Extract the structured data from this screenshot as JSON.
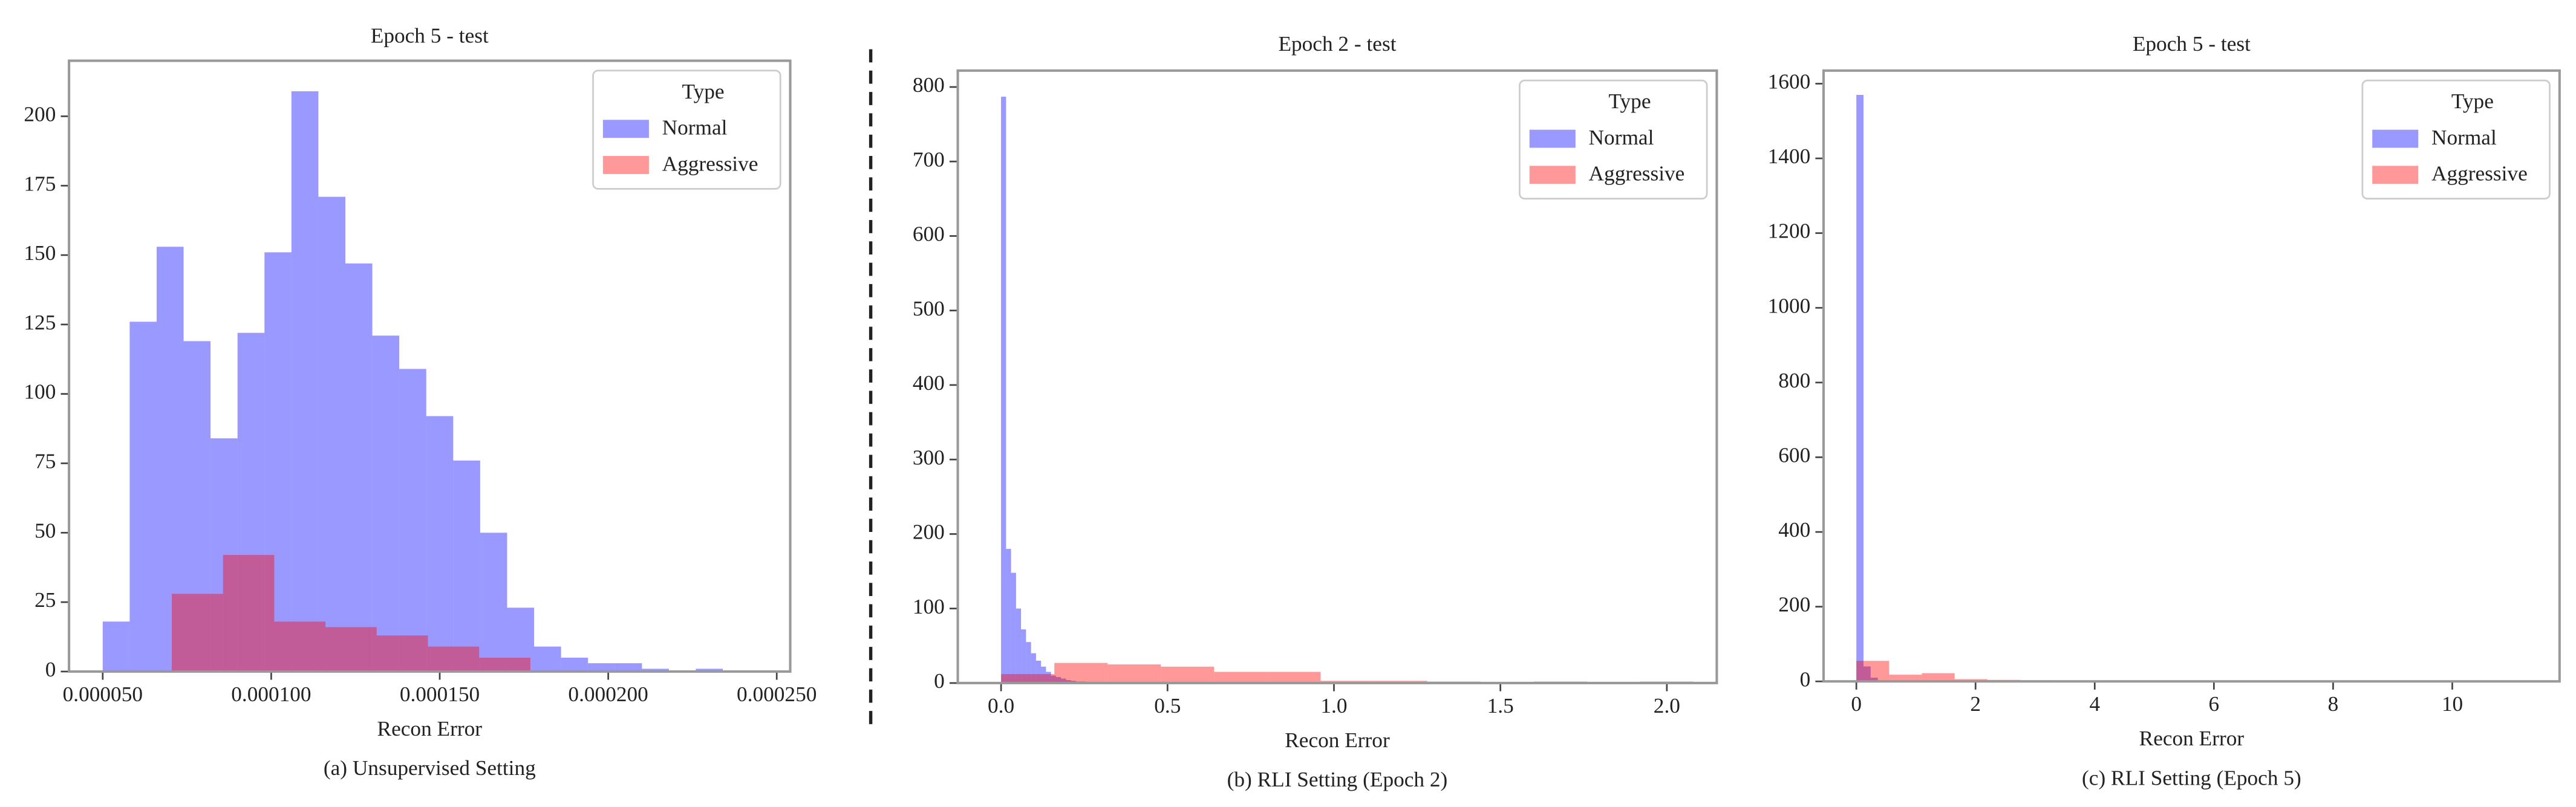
{
  "chart_data": [
    {
      "type": "histogram",
      "title": "Epoch 5 - test",
      "xlabel": "Recon Error",
      "caption": "(a) Unsupervised Setting",
      "xlim": [
        4e-05,
        0.000254
      ],
      "ylim": [
        0,
        220
      ],
      "xticks": [
        {
          "value": 5e-05,
          "label": "0.000050"
        },
        {
          "value": 0.0001,
          "label": "0.000100"
        },
        {
          "value": 0.00015,
          "label": "0.000150"
        },
        {
          "value": 0.0002,
          "label": "0.000200"
        },
        {
          "value": 0.00025,
          "label": "0.000250"
        }
      ],
      "yticks": [
        0,
        25,
        50,
        75,
        100,
        125,
        150,
        175,
        200
      ],
      "legend_title": "Type",
      "legend": "upper right",
      "series": [
        {
          "name": "Normal",
          "color": "#0000ff",
          "alpha": 0.4,
          "bins": [
            5e-05,
            5.8e-05,
            6.6e-05,
            7.4e-05,
            8.2e-05,
            9e-05,
            9.8e-05,
            0.000106,
            0.000114,
            0.000122,
            0.00013,
            0.000138,
            0.000146,
            0.000154,
            0.000162,
            0.00017,
            0.000178,
            0.000186,
            0.000194,
            0.000202,
            0.00021,
            0.000218,
            0.000226,
            0.000234,
            0.000242
          ],
          "values": [
            18,
            126,
            153,
            119,
            84,
            122,
            151,
            209,
            171,
            147,
            121,
            109,
            92,
            76,
            50,
            23,
            9,
            5,
            3,
            3,
            1,
            0,
            1,
            0
          ]
        },
        {
          "name": "Aggressive",
          "color": "#ff0000",
          "alpha": 0.4,
          "bins": [
            7.05e-05,
            8.57e-05,
            0.0001009,
            0.0001161,
            0.0001313,
            0.0001465,
            0.0001617,
            0.0001769
          ],
          "values": [
            28,
            42,
            18,
            16,
            13,
            9,
            5
          ]
        }
      ]
    },
    {
      "type": "histogram",
      "title": "Epoch 2 - test",
      "xlabel": "Recon Error",
      "caption": "(b) RLI Setting  (Epoch 2)",
      "xlim": [
        -0.13,
        2.15
      ],
      "ylim": [
        0,
        822
      ],
      "xticks": [
        {
          "value": 0,
          "label": "0.0"
        },
        0.5,
        {
          "value": 1,
          "label": "1.0"
        },
        1.5,
        {
          "value": 2,
          "label": "2.0"
        }
      ],
      "yticks": [
        0,
        100,
        200,
        300,
        400,
        500,
        600,
        700,
        800
      ],
      "legend_title": "Type",
      "legend": "upper right",
      "series": [
        {
          "name": "Normal",
          "color": "#0000ff",
          "alpha": 0.4,
          "bins": [
            0,
            0.015,
            0.03,
            0.045,
            0.06,
            0.075,
            0.09,
            0.105,
            0.12,
            0.135,
            0.15,
            0.165,
            0.18,
            0.195,
            0.21,
            0.225,
            0.24,
            0.255,
            0.27,
            0.285,
            0.3
          ],
          "values": [
            787,
            180,
            148,
            100,
            72,
            55,
            40,
            30,
            22,
            15,
            10,
            8,
            6,
            4,
            3,
            2,
            2,
            1,
            1,
            1
          ]
        },
        {
          "name": "Aggressive",
          "color": "#ff0000",
          "alpha": 0.4,
          "bins": [
            0,
            0.16,
            0.32,
            0.48,
            0.64,
            0.8,
            0.96,
            1.12,
            1.28,
            1.44,
            1.6,
            1.76,
            1.92,
            2.08
          ],
          "values": [
            12,
            27,
            25,
            22,
            15,
            15,
            3,
            3,
            2,
            1,
            2,
            0,
            2
          ]
        }
      ]
    },
    {
      "type": "histogram",
      "title": "Epoch 5 - test",
      "xlabel": "Recon Error",
      "caption": "(c) RLI Setting  (Epoch 5)",
      "xlim": [
        -0.55,
        11.8
      ],
      "ylim": [
        0,
        1635
      ],
      "xticks": [
        0,
        2,
        4,
        6,
        8,
        10
      ],
      "yticks": [
        0,
        200,
        400,
        600,
        800,
        1000,
        1200,
        1400,
        1600
      ],
      "legend_title": "Type",
      "legend": "upper right",
      "series": [
        {
          "name": "Normal",
          "color": "#0000ff",
          "alpha": 0.4,
          "bins": [
            0,
            0.12,
            0.24,
            0.36,
            0.48
          ],
          "values": [
            1570,
            40,
            10,
            3
          ]
        },
        {
          "name": "Aggressive",
          "color": "#ff0000",
          "alpha": 0.4,
          "bins": [
            0,
            0.55,
            1.1,
            1.65,
            2.2,
            2.75,
            3.3,
            3.85
          ],
          "values": [
            55,
            18,
            22,
            6,
            4,
            3,
            2
          ]
        }
      ]
    }
  ]
}
